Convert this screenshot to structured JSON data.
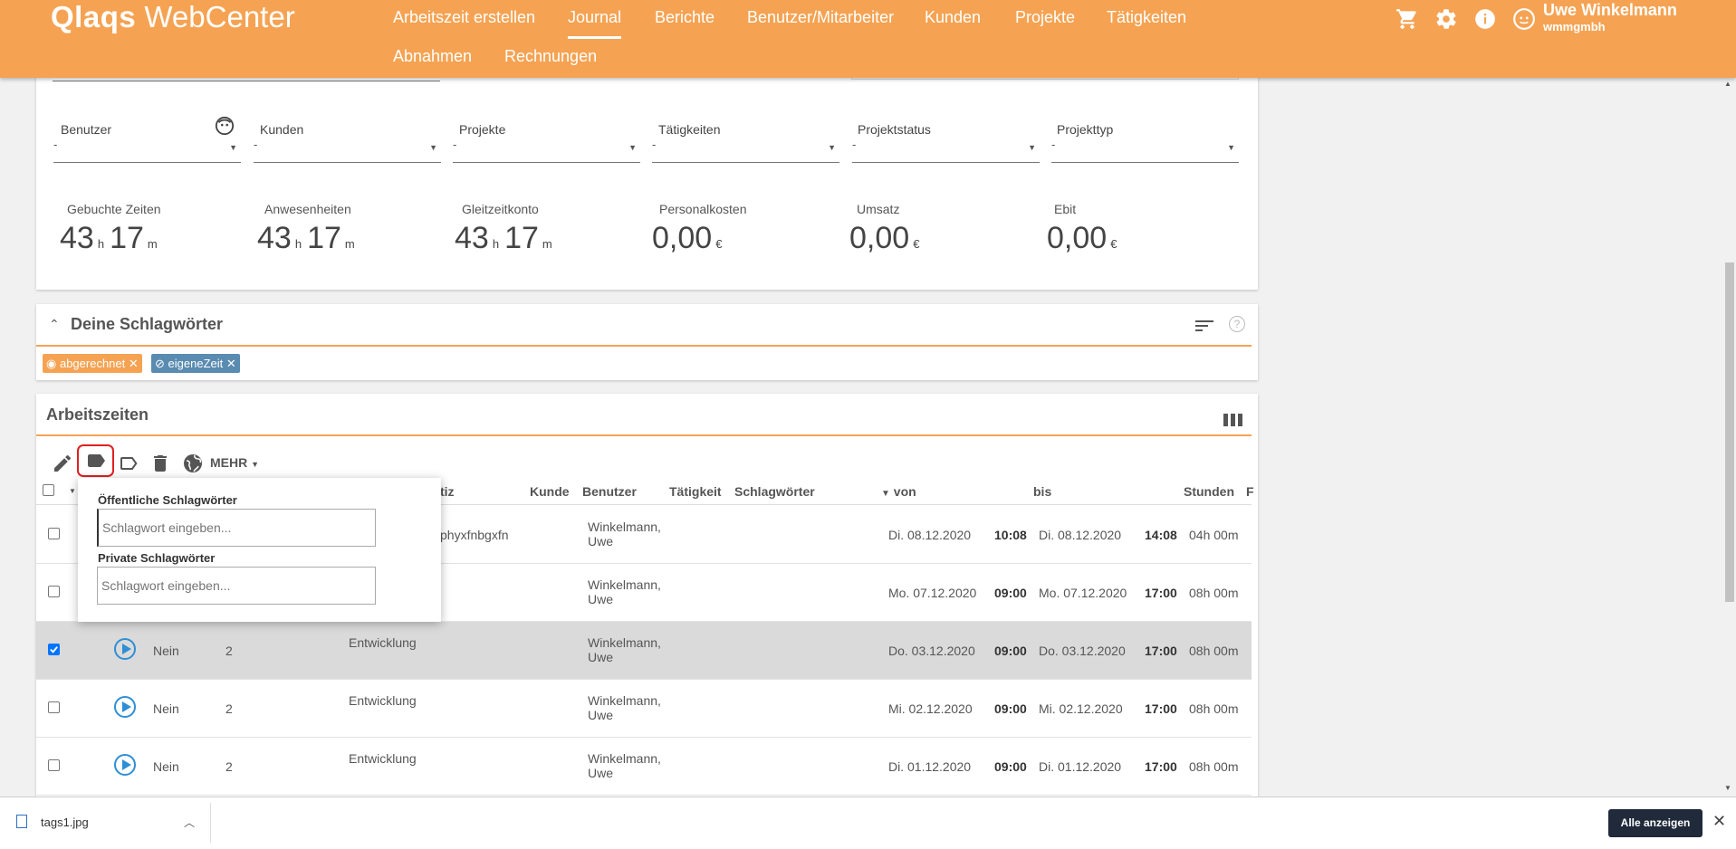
{
  "header": {
    "logo_brand": "Qlaqs",
    "logo_product": "WebCenter",
    "nav": [
      {
        "label": "Arbeitszeit erstellen"
      },
      {
        "label": "Journal"
      },
      {
        "label": "Berichte"
      },
      {
        "label": "Benutzer/Mitarbeiter"
      },
      {
        "label": "Kunden"
      },
      {
        "label": "Projekte"
      },
      {
        "label": "Tätigkeiten"
      },
      {
        "label": "Abnahmen"
      },
      {
        "label": "Rechnungen"
      }
    ],
    "active_nav": "Journal",
    "icons": [
      "cart-icon",
      "gear-icon",
      "info-icon",
      "user-avatar-icon"
    ],
    "user_name": "Uwe Winkelmann",
    "user_company": "wmmgmbh"
  },
  "filters": [
    {
      "label": "Benutzer",
      "value": "-"
    },
    {
      "label": "Kunden",
      "value": "-"
    },
    {
      "label": "Projekte",
      "value": "-"
    },
    {
      "label": "Tätigkeiten",
      "value": "-"
    },
    {
      "label": "Projektstatus",
      "value": "-"
    },
    {
      "label": "Projekttyp",
      "value": "-"
    }
  ],
  "stats": [
    {
      "label": "Gebuchte Zeiten",
      "h": "43",
      "h_unit": "h",
      "m": "17",
      "m_unit": "m"
    },
    {
      "label": "Anwesenheiten",
      "h": "43",
      "h_unit": "h",
      "m": "17",
      "m_unit": "m"
    },
    {
      "label": "Gleitzeitkonto",
      "h": "43",
      "h_unit": "h",
      "m": "17",
      "m_unit": "m"
    },
    {
      "label": "Personalkosten",
      "value": "0,00",
      "unit": "€"
    },
    {
      "label": "Umsatz",
      "value": "0,00",
      "unit": "€"
    },
    {
      "label": "Ebit",
      "value": "0,00",
      "unit": "€"
    }
  ],
  "tags_section": {
    "title": "Deine Schlagwörter",
    "tags": [
      {
        "label": "abgerechnet",
        "color": "#f5a353"
      },
      {
        "label": "eigeneZeit",
        "color": "#5a8bb0"
      }
    ]
  },
  "worktimes": {
    "title": "Arbeitszeiten",
    "toolbar_more": "MEHR",
    "columns": [
      "tiz",
      "Kunde",
      "Benutzer",
      "Tätigkeit",
      "Schlagwörter",
      "von",
      "bis",
      "Stunden",
      "F"
    ],
    "rows": [
      {
        "checked": false,
        "abgerechnet": "",
        "project": "",
        "notiz": "phyxfnbgxfn",
        "user1": "Winkelmann,",
        "user2": "Uwe",
        "von_date": "Di. 08.12.2020",
        "von_time": "10:08",
        "bis_date": "Di. 08.12.2020",
        "bis_time": "14:08",
        "stunden": "04h 00m"
      },
      {
        "checked": false,
        "abgerechnet": "",
        "project": "",
        "notiz": "",
        "user1": "Winkelmann,",
        "user2": "Uwe",
        "von_date": "Mo. 07.12.2020",
        "von_time": "09:00",
        "bis_date": "Mo. 07.12.2020",
        "bis_time": "17:00",
        "stunden": "08h 00m"
      },
      {
        "checked": true,
        "abgerechnet": "Nein",
        "project": "2",
        "notiz": "Entwicklung",
        "user1": "Winkelmann,",
        "user2": "Uwe",
        "von_date": "Do. 03.12.2020",
        "von_time": "09:00",
        "bis_date": "Do. 03.12.2020",
        "bis_time": "17:00",
        "stunden": "08h 00m"
      },
      {
        "checked": false,
        "abgerechnet": "Nein",
        "project": "2",
        "notiz": "Entwicklung",
        "user1": "Winkelmann,",
        "user2": "Uwe",
        "von_date": "Mi. 02.12.2020",
        "von_time": "09:00",
        "bis_date": "Mi. 02.12.2020",
        "bis_time": "17:00",
        "stunden": "08h 00m"
      },
      {
        "checked": false,
        "abgerechnet": "Nein",
        "project": "2",
        "notiz": "Entwicklung",
        "user1": "Winkelmann,",
        "user2": "Uwe",
        "von_date": "Di. 01.12.2020",
        "von_time": "09:00",
        "bis_date": "Di. 01.12.2020",
        "bis_time": "17:00",
        "stunden": "08h 00m"
      }
    ]
  },
  "tag_popup": {
    "public_label": "Öffentliche Schlagwörter",
    "public_placeholder": "Schlagwort eingeben...",
    "private_label": "Private Schlagwörter",
    "private_placeholder": "Schlagwort eingeben..."
  },
  "download_bar": {
    "filename": "tags1.jpg",
    "show_all": "Alle anzeigen"
  }
}
